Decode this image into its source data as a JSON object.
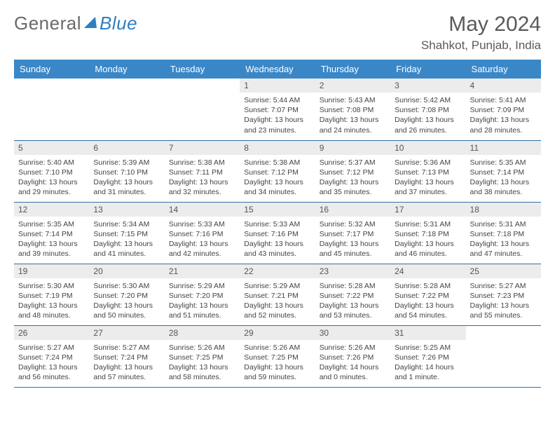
{
  "brand": {
    "part1": "General",
    "part2": "Blue"
  },
  "title": "May 2024",
  "location": "Shahkot, Punjab, India",
  "columns": [
    "Sunday",
    "Monday",
    "Tuesday",
    "Wednesday",
    "Thursday",
    "Friday",
    "Saturday"
  ],
  "colors": {
    "header_bg": "#3a87c8",
    "header_fg": "#ffffff",
    "row_border": "#2f6ea8",
    "daynum_bg": "#ececec",
    "brand_blue": "#2f7ec2",
    "text": "#444444"
  },
  "weeks": [
    [
      {
        "n": "",
        "sr": "",
        "ss": "",
        "dl": ""
      },
      {
        "n": "",
        "sr": "",
        "ss": "",
        "dl": ""
      },
      {
        "n": "",
        "sr": "",
        "ss": "",
        "dl": ""
      },
      {
        "n": "1",
        "sr": "5:44 AM",
        "ss": "7:07 PM",
        "dl": "13 hours and 23 minutes."
      },
      {
        "n": "2",
        "sr": "5:43 AM",
        "ss": "7:08 PM",
        "dl": "13 hours and 24 minutes."
      },
      {
        "n": "3",
        "sr": "5:42 AM",
        "ss": "7:08 PM",
        "dl": "13 hours and 26 minutes."
      },
      {
        "n": "4",
        "sr": "5:41 AM",
        "ss": "7:09 PM",
        "dl": "13 hours and 28 minutes."
      }
    ],
    [
      {
        "n": "5",
        "sr": "5:40 AM",
        "ss": "7:10 PM",
        "dl": "13 hours and 29 minutes."
      },
      {
        "n": "6",
        "sr": "5:39 AM",
        "ss": "7:10 PM",
        "dl": "13 hours and 31 minutes."
      },
      {
        "n": "7",
        "sr": "5:38 AM",
        "ss": "7:11 PM",
        "dl": "13 hours and 32 minutes."
      },
      {
        "n": "8",
        "sr": "5:38 AM",
        "ss": "7:12 PM",
        "dl": "13 hours and 34 minutes."
      },
      {
        "n": "9",
        "sr": "5:37 AM",
        "ss": "7:12 PM",
        "dl": "13 hours and 35 minutes."
      },
      {
        "n": "10",
        "sr": "5:36 AM",
        "ss": "7:13 PM",
        "dl": "13 hours and 37 minutes."
      },
      {
        "n": "11",
        "sr": "5:35 AM",
        "ss": "7:14 PM",
        "dl": "13 hours and 38 minutes."
      }
    ],
    [
      {
        "n": "12",
        "sr": "5:35 AM",
        "ss": "7:14 PM",
        "dl": "13 hours and 39 minutes."
      },
      {
        "n": "13",
        "sr": "5:34 AM",
        "ss": "7:15 PM",
        "dl": "13 hours and 41 minutes."
      },
      {
        "n": "14",
        "sr": "5:33 AM",
        "ss": "7:16 PM",
        "dl": "13 hours and 42 minutes."
      },
      {
        "n": "15",
        "sr": "5:33 AM",
        "ss": "7:16 PM",
        "dl": "13 hours and 43 minutes."
      },
      {
        "n": "16",
        "sr": "5:32 AM",
        "ss": "7:17 PM",
        "dl": "13 hours and 45 minutes."
      },
      {
        "n": "17",
        "sr": "5:31 AM",
        "ss": "7:18 PM",
        "dl": "13 hours and 46 minutes."
      },
      {
        "n": "18",
        "sr": "5:31 AM",
        "ss": "7:18 PM",
        "dl": "13 hours and 47 minutes."
      }
    ],
    [
      {
        "n": "19",
        "sr": "5:30 AM",
        "ss": "7:19 PM",
        "dl": "13 hours and 48 minutes."
      },
      {
        "n": "20",
        "sr": "5:30 AM",
        "ss": "7:20 PM",
        "dl": "13 hours and 50 minutes."
      },
      {
        "n": "21",
        "sr": "5:29 AM",
        "ss": "7:20 PM",
        "dl": "13 hours and 51 minutes."
      },
      {
        "n": "22",
        "sr": "5:29 AM",
        "ss": "7:21 PM",
        "dl": "13 hours and 52 minutes."
      },
      {
        "n": "23",
        "sr": "5:28 AM",
        "ss": "7:22 PM",
        "dl": "13 hours and 53 minutes."
      },
      {
        "n": "24",
        "sr": "5:28 AM",
        "ss": "7:22 PM",
        "dl": "13 hours and 54 minutes."
      },
      {
        "n": "25",
        "sr": "5:27 AM",
        "ss": "7:23 PM",
        "dl": "13 hours and 55 minutes."
      }
    ],
    [
      {
        "n": "26",
        "sr": "5:27 AM",
        "ss": "7:24 PM",
        "dl": "13 hours and 56 minutes."
      },
      {
        "n": "27",
        "sr": "5:27 AM",
        "ss": "7:24 PM",
        "dl": "13 hours and 57 minutes."
      },
      {
        "n": "28",
        "sr": "5:26 AM",
        "ss": "7:25 PM",
        "dl": "13 hours and 58 minutes."
      },
      {
        "n": "29",
        "sr": "5:26 AM",
        "ss": "7:25 PM",
        "dl": "13 hours and 59 minutes."
      },
      {
        "n": "30",
        "sr": "5:26 AM",
        "ss": "7:26 PM",
        "dl": "14 hours and 0 minutes."
      },
      {
        "n": "31",
        "sr": "5:25 AM",
        "ss": "7:26 PM",
        "dl": "14 hours and 1 minute."
      },
      {
        "n": "",
        "sr": "",
        "ss": "",
        "dl": ""
      }
    ]
  ],
  "labels": {
    "sunrise": "Sunrise:",
    "sunset": "Sunset:",
    "daylight": "Daylight:"
  }
}
